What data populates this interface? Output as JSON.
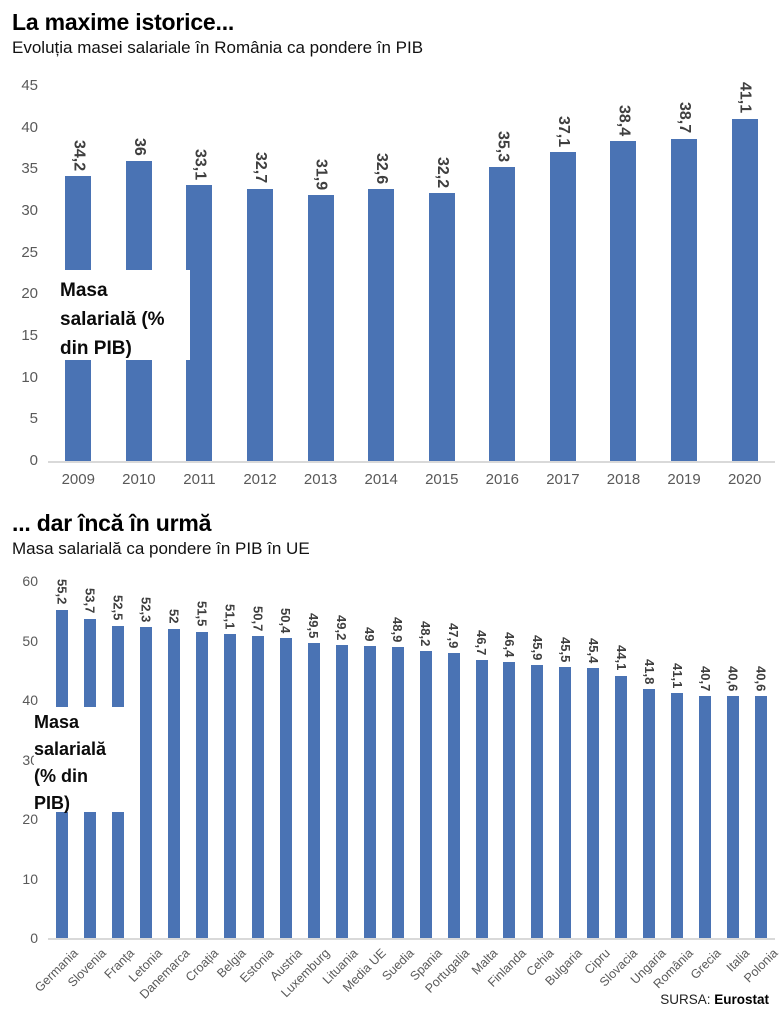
{
  "page": {
    "source_prefix": "SURSA:",
    "source_name": "Eurostat"
  },
  "colors": {
    "bar": "#4a73b4",
    "value_label": "#3f3f3f",
    "tick_label": "#595959",
    "baseline": "#d9d9d9"
  },
  "chart_data": [
    {
      "type": "bar",
      "title": "La maxime istorice...",
      "subtitle": "Evoluția masei salariale în România ca pondere în PIB",
      "categories": [
        "2009",
        "2010",
        "2011",
        "2012",
        "2013",
        "2014",
        "2015",
        "2016",
        "2017",
        "2018",
        "2019",
        "2020"
      ],
      "values": [
        34.2,
        36,
        33.1,
        32.7,
        31.9,
        32.6,
        32.2,
        35.3,
        37.1,
        38.4,
        38.7,
        41.1
      ],
      "value_labels": [
        "34,2",
        "36",
        "33,1",
        "32,7",
        "31,9",
        "32,6",
        "32,2",
        "35,3",
        "37,1",
        "38,4",
        "38,7",
        "41,1"
      ],
      "ylabel": "Masa salarială (% din PIB)",
      "ylabel_lines": [
        "Masa",
        "salarială (%",
        "din PIB)"
      ],
      "ylim": [
        0,
        45
      ],
      "yticks": [
        0,
        5,
        10,
        15,
        20,
        25,
        30,
        35,
        40,
        45
      ],
      "grid": false,
      "legend_position": "overlay-left",
      "value_label_rotation": 90,
      "category_label_rotation": 0
    },
    {
      "type": "bar",
      "title": "... dar încă în urmă",
      "subtitle": "Masa salarială ca pondere în PIB în UE",
      "categories": [
        "Germania",
        "Slovenia",
        "Franța",
        "Letonia",
        "Danemarca",
        "Croația",
        "Belgia",
        "Estonia",
        "Austria",
        "Luxemburg",
        "Lituania",
        "Media UE",
        "Suedia",
        "Spania",
        "Portugalia",
        "Malta",
        "Finlanda",
        "Cehia",
        "Bulgaria",
        "Cipru",
        "Slovacia",
        "Ungaria",
        "România",
        "Grecia",
        "Italia",
        "Polonia"
      ],
      "values": [
        55.2,
        53.7,
        52.5,
        52.3,
        52,
        51.5,
        51.1,
        50.7,
        50.4,
        49.5,
        49.2,
        49,
        48.9,
        48.2,
        47.9,
        46.7,
        46.4,
        45.9,
        45.5,
        45.4,
        44.1,
        41.8,
        41.1,
        40.7,
        40.6,
        40.6
      ],
      "value_labels": [
        "55,2",
        "53,7",
        "52,5",
        "52,3",
        "52",
        "51,5",
        "51,1",
        "50,7",
        "50,4",
        "49,5",
        "49,2",
        "49",
        "48,9",
        "48,2",
        "47,9",
        "46,7",
        "46,4",
        "45,9",
        "45,5",
        "45,4",
        "44,1",
        "41,8",
        "41,1",
        "40,7",
        "40,6",
        "40,6"
      ],
      "ylabel": "Masa salarială (% din PIB)",
      "ylabel_lines": [
        "Masa",
        "salarială",
        "(% din",
        "PIB)"
      ],
      "ylim": [
        0,
        60
      ],
      "yticks": [
        0,
        10,
        20,
        30,
        40,
        50,
        60
      ],
      "grid": false,
      "legend_position": "overlay-left",
      "value_label_rotation": 90,
      "category_label_rotation": -45
    }
  ]
}
